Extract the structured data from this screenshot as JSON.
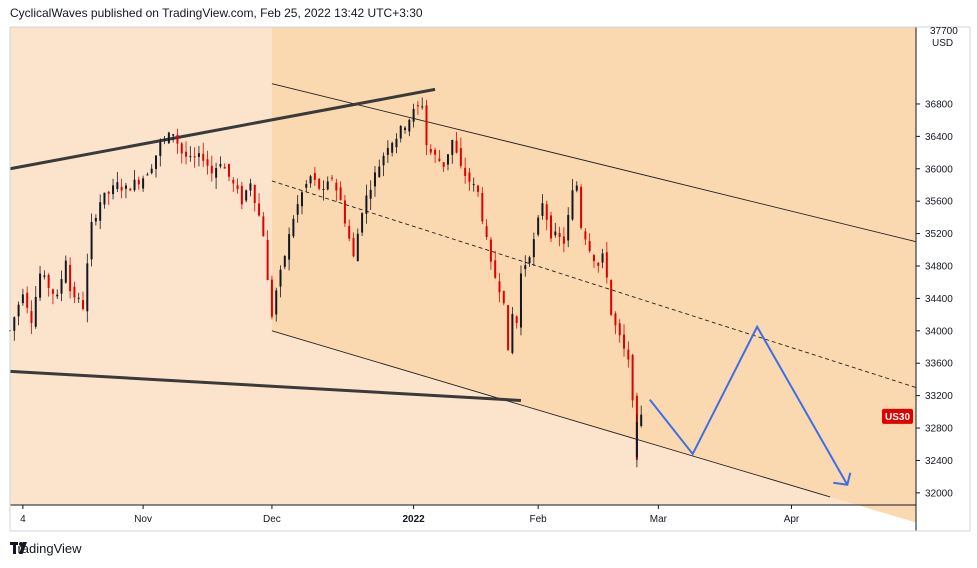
{
  "header": {
    "published_text": "CyclicalWaves published on TradingView.com, Feb 25, 2022 13:42 UTC+3:30"
  },
  "footer": {
    "brand_label": "TradingView"
  },
  "colors": {
    "background_panel": "#fce4cc",
    "channel_fill": "#fbd9b0",
    "up_candle": "#131722",
    "down_candle": "#e00000",
    "wedge_line": "#3a3a3a",
    "projection_line": "#3d6ee8",
    "price_badge": "#e00000"
  },
  "chart_data": {
    "type": "candlestick",
    "title": "",
    "symbol_badge": "US30",
    "currency_label": "USD",
    "y_unit": "USD",
    "ylim": [
      31850,
      37750
    ],
    "x_range": [
      "2021-10-01",
      "2022-04-30"
    ],
    "y_ticks": [
      32000,
      32400,
      32800,
      33200,
      33600,
      34000,
      34400,
      34800,
      35200,
      35600,
      36000,
      36400,
      36800
    ],
    "y_top_label": "37700",
    "x_ticks": [
      {
        "label": "4",
        "date": "2021-10-04",
        "bold": false
      },
      {
        "label": "Nov",
        "date": "2021-11-01",
        "bold": false
      },
      {
        "label": "Dec",
        "date": "2021-12-01",
        "bold": false
      },
      {
        "label": "2022",
        "date": "2022-01-03",
        "bold": true
      },
      {
        "label": "Feb",
        "date": "2022-02-01",
        "bold": false
      },
      {
        "label": "Mar",
        "date": "2022-03-01",
        "bold": false
      },
      {
        "label": "Apr",
        "date": "2022-04-01",
        "bold": false
      }
    ],
    "price_path": [
      [
        "2021-10-01",
        34000
      ],
      [
        "2021-10-04",
        34500
      ],
      [
        "2021-10-06",
        34150
      ],
      [
        "2021-10-08",
        34700
      ],
      [
        "2021-10-12",
        34400
      ],
      [
        "2021-10-14",
        34900
      ],
      [
        "2021-10-15",
        34500
      ],
      [
        "2021-10-18",
        34300
      ],
      [
        "2021-10-20",
        35300
      ],
      [
        "2021-10-22",
        35600
      ],
      [
        "2021-10-26",
        35800
      ],
      [
        "2021-10-28",
        35750
      ],
      [
        "2021-11-01",
        35900
      ],
      [
        "2021-11-03",
        36050
      ],
      [
        "2021-11-05",
        36300
      ],
      [
        "2021-11-08",
        36450
      ],
      [
        "2021-11-10",
        36200
      ],
      [
        "2021-11-12",
        36100
      ],
      [
        "2021-11-15",
        36150
      ],
      [
        "2021-11-17",
        35950
      ],
      [
        "2021-11-19",
        36100
      ],
      [
        "2021-11-22",
        35800
      ],
      [
        "2021-11-24",
        35600
      ],
      [
        "2021-11-26",
        35850
      ],
      [
        "2021-11-29",
        35200
      ],
      [
        "2021-11-30",
        34600
      ],
      [
        "2021-12-01",
        34200
      ],
      [
        "2021-12-02",
        34500
      ],
      [
        "2021-12-03",
        34700
      ],
      [
        "2021-12-06",
        35400
      ],
      [
        "2021-12-08",
        35700
      ],
      [
        "2021-12-10",
        35900
      ],
      [
        "2021-12-13",
        35700
      ],
      [
        "2021-12-15",
        35900
      ],
      [
        "2021-12-17",
        35600
      ],
      [
        "2021-12-20",
        34900
      ],
      [
        "2021-12-22",
        35500
      ],
      [
        "2021-12-24",
        35800
      ],
      [
        "2021-12-28",
        36300
      ],
      [
        "2021-12-30",
        36400
      ],
      [
        "2022-01-03",
        36700
      ],
      [
        "2022-01-05",
        36800
      ],
      [
        "2022-01-06",
        36300
      ],
      [
        "2022-01-07",
        36200
      ],
      [
        "2022-01-10",
        36050
      ],
      [
        "2022-01-12",
        36350
      ],
      [
        "2022-01-14",
        36000
      ],
      [
        "2022-01-18",
        35700
      ],
      [
        "2022-01-19",
        35400
      ],
      [
        "2022-01-21",
        34800
      ],
      [
        "2022-01-24",
        34400
      ],
      [
        "2022-01-25",
        33700
      ],
      [
        "2022-01-26",
        34200
      ],
      [
        "2022-01-27",
        34100
      ],
      [
        "2022-01-28",
        34700
      ],
      [
        "2022-01-31",
        35100
      ],
      [
        "2022-02-02",
        35600
      ],
      [
        "2022-02-04",
        35200
      ],
      [
        "2022-02-07",
        35100
      ],
      [
        "2022-02-09",
        35700
      ],
      [
        "2022-02-10",
        35800
      ],
      [
        "2022-02-11",
        35300
      ],
      [
        "2022-02-14",
        34900
      ],
      [
        "2022-02-15",
        34800
      ],
      [
        "2022-02-16",
        34900
      ],
      [
        "2022-02-17",
        34700
      ],
      [
        "2022-02-18",
        34200
      ],
      [
        "2022-02-22",
        33600
      ],
      [
        "2022-02-23",
        33200
      ],
      [
        "2022-02-24",
        32350
      ],
      [
        "2022-02-24",
        32900
      ],
      [
        "2022-02-25",
        33000
      ]
    ],
    "annotations": {
      "upper_wedge_line": [
        [
          "2021-10-01",
          36000
        ],
        [
          "2022-01-08",
          36980
        ]
      ],
      "lower_wedge_line": [
        [
          "2021-10-01",
          33500
        ],
        [
          "2022-01-28",
          33140
        ]
      ],
      "channel_upper": [
        [
          "2021-12-01",
          37050
        ],
        [
          "2022-04-30",
          35100
        ]
      ],
      "channel_mid": [
        [
          "2021-12-01",
          35850
        ],
        [
          "2022-04-30",
          33300
        ]
      ],
      "channel_lower": [
        [
          "2021-12-01",
          34000
        ],
        [
          "2022-04-10",
          31950
        ]
      ],
      "projection_path": [
        [
          "2022-02-27",
          33150
        ],
        [
          "2022-03-09",
          32480
        ],
        [
          "2022-03-24",
          34050
        ],
        [
          "2022-04-14",
          32100
        ]
      ]
    },
    "last_price_badge_value": 32950
  }
}
